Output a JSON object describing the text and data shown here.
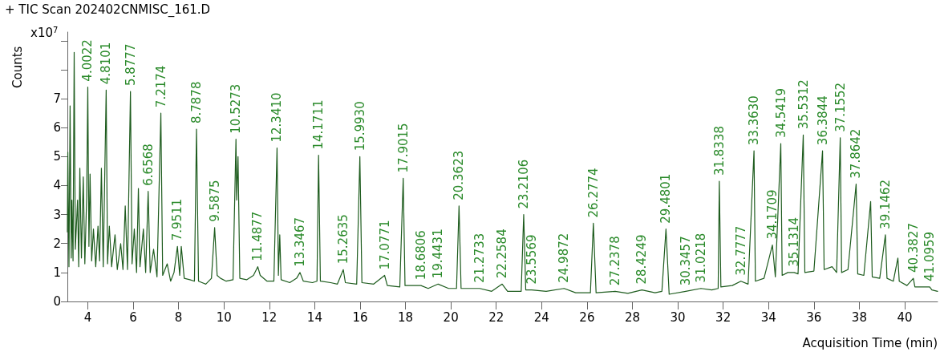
{
  "chart_data": {
    "type": "line",
    "title": "+ TIC Scan 202402CNMISC_161.D",
    "xlabel": "Acquisition Time (min)",
    "ylabel": "Counts",
    "xlim": [
      3.1,
      41.45
    ],
    "xticks": [
      4,
      6,
      8,
      10,
      12,
      14,
      16,
      18,
      20,
      22,
      24,
      26,
      28,
      30,
      32,
      34,
      36,
      38,
      40
    ],
    "ylim": [
      0,
      9.3
    ],
    "yticks": [
      0,
      1,
      2,
      3,
      4,
      5,
      6,
      7,
      {
        "value": 8,
        "label": null
      },
      {
        "value": 9,
        "label": null
      }
    ],
    "grid": false,
    "marker": "none",
    "line_style": "solid",
    "series": [
      {
        "color": "#1e5c1e",
        "x": [
          3.1,
          3.12,
          3.17,
          3.22,
          3.27,
          3.3,
          3.35,
          3.4,
          3.45,
          3.55,
          3.6,
          3.65,
          3.72,
          3.8,
          3.87,
          3.95,
          4.0,
          4.05,
          4.1,
          4.17,
          4.25,
          4.35,
          4.45,
          4.52,
          4.6,
          4.68,
          4.81,
          4.87,
          4.95,
          5.05,
          5.2,
          5.3,
          5.45,
          5.55,
          5.65,
          5.75,
          5.88,
          5.95,
          6.05,
          6.15,
          6.23,
          6.3,
          6.45,
          6.55,
          6.66,
          6.75,
          6.9,
          7.05,
          7.22,
          7.3,
          7.5,
          7.65,
          7.8,
          7.95,
          8.05,
          8.12,
          8.25,
          8.5,
          8.7,
          8.79,
          8.88,
          9.2,
          9.45,
          9.59,
          9.7,
          9.85,
          10.1,
          10.4,
          10.53,
          10.56,
          10.62,
          10.7,
          11.0,
          11.3,
          11.49,
          11.6,
          11.9,
          12.2,
          12.34,
          12.4,
          12.46,
          12.52,
          12.9,
          13.2,
          13.35,
          13.5,
          13.9,
          14.1,
          14.17,
          14.25,
          14.7,
          15.0,
          15.26,
          15.35,
          15.85,
          15.99,
          16.08,
          16.6,
          17.08,
          17.2,
          17.75,
          17.9,
          17.98,
          18.68,
          19.0,
          19.44,
          19.9,
          20.25,
          20.36,
          20.45,
          21.27,
          21.8,
          22.26,
          22.5,
          23.1,
          23.21,
          23.3,
          23.56,
          24.2,
          24.99,
          25.5,
          26.15,
          26.28,
          26.4,
          27.24,
          27.8,
          28.42,
          29.0,
          29.3,
          29.48,
          29.62,
          30.35,
          31.02,
          31.5,
          31.78,
          31.83,
          31.9,
          32.4,
          32.78,
          33.1,
          33.36,
          33.42,
          33.8,
          34.17,
          34.3,
          34.54,
          34.6,
          34.85,
          35.13,
          35.3,
          35.53,
          35.6,
          36.0,
          36.38,
          36.45,
          36.8,
          37.0,
          37.16,
          37.22,
          37.5,
          37.86,
          37.93,
          38.2,
          38.5,
          38.57,
          38.9,
          39.15,
          39.22,
          39.5,
          39.7,
          39.76,
          40.1,
          40.38,
          40.45,
          40.7,
          41.1,
          41.2,
          41.45
        ],
        "values": [
          2.4,
          5.15,
          1.2,
          6.75,
          1.5,
          3.5,
          1.4,
          8.6,
          1.8,
          3.5,
          1.2,
          4.6,
          1.5,
          4.3,
          1.3,
          3.6,
          7.4,
          1.9,
          4.4,
          1.4,
          2.5,
          1.2,
          2.6,
          1.4,
          4.6,
          1.2,
          7.3,
          1.3,
          2.6,
          1.2,
          2.3,
          1.1,
          2.0,
          1.1,
          3.3,
          1.1,
          7.25,
          1.3,
          2.5,
          1.0,
          3.9,
          1.2,
          2.5,
          1.0,
          3.8,
          1.0,
          1.8,
          0.85,
          6.5,
          0.9,
          1.3,
          0.7,
          1.0,
          1.9,
          0.9,
          1.9,
          0.8,
          0.75,
          0.7,
          5.95,
          0.7,
          0.6,
          0.8,
          2.55,
          0.9,
          0.8,
          0.7,
          0.75,
          5.6,
          3.5,
          5.0,
          0.8,
          0.75,
          0.9,
          1.2,
          0.9,
          0.7,
          0.7,
          5.3,
          0.9,
          2.3,
          0.75,
          0.65,
          0.8,
          1.0,
          0.7,
          0.65,
          0.7,
          5.05,
          0.7,
          0.65,
          0.6,
          1.1,
          0.65,
          0.6,
          5.0,
          0.65,
          0.6,
          0.9,
          0.55,
          0.5,
          4.25,
          0.55,
          0.55,
          0.45,
          0.6,
          0.45,
          0.45,
          3.3,
          0.45,
          0.45,
          0.35,
          0.6,
          0.35,
          0.35,
          3.0,
          0.4,
          0.4,
          0.35,
          0.45,
          0.3,
          0.3,
          2.7,
          0.3,
          0.35,
          0.28,
          0.4,
          0.3,
          0.35,
          2.5,
          0.25,
          0.35,
          0.45,
          0.4,
          0.45,
          4.15,
          0.5,
          0.55,
          0.7,
          0.6,
          5.2,
          0.7,
          0.8,
          1.95,
          0.85,
          5.45,
          0.9,
          1.0,
          1.0,
          0.95,
          5.75,
          1.0,
          1.05,
          5.2,
          1.1,
          1.2,
          1.0,
          5.65,
          1.0,
          1.1,
          4.05,
          0.95,
          0.9,
          3.45,
          0.85,
          0.8,
          2.3,
          0.8,
          0.7,
          1.5,
          0.7,
          0.55,
          0.8,
          0.5,
          0.5,
          0.5,
          0.4,
          0.35
        ]
      }
    ],
    "annotations": [
      "x10$^{7}$",
      {
        "text": "4.0022",
        "x": 4.0,
        "y": 7.4
      },
      {
        "text": "4.8101",
        "x": 4.81,
        "y": 7.3
      },
      {
        "text": "5.8777",
        "x": 5.88,
        "y": 7.25
      },
      {
        "text": "6.6568",
        "x": 6.66,
        "y": 3.8
      },
      {
        "text": "7.2174",
        "x": 7.22,
        "y": 6.5
      },
      {
        "text": "7.9511",
        "x": 7.95,
        "y": 1.9
      },
      {
        "text": "8.7878",
        "x": 8.79,
        "y": 5.95
      },
      {
        "text": "9.5875",
        "x": 9.59,
        "y": 2.55
      },
      {
        "text": "10.5273",
        "x": 10.53,
        "y": 5.6
      },
      {
        "text": "11.4877",
        "x": 11.49,
        "y": 1.2
      },
      {
        "text": "12.3410",
        "x": 12.34,
        "y": 5.3
      },
      {
        "text": "13.3467",
        "x": 13.35,
        "y": 1.0
      },
      {
        "text": "14.1711",
        "x": 14.17,
        "y": 5.05
      },
      {
        "text": "15.2635",
        "x": 15.26,
        "y": 1.1
      },
      {
        "text": "15.9930",
        "x": 15.99,
        "y": 5.0
      },
      {
        "text": "17.0771",
        "x": 17.08,
        "y": 0.9
      },
      {
        "text": "17.9015",
        "x": 17.9,
        "y": 4.25
      },
      {
        "text": "18.6806",
        "x": 18.68,
        "y": 0.55
      },
      {
        "text": "19.4431",
        "x": 19.44,
        "y": 0.6
      },
      {
        "text": "20.3623",
        "x": 20.36,
        "y": 3.3
      },
      {
        "text": "21.2733",
        "x": 21.27,
        "y": 0.45
      },
      {
        "text": "22.2584",
        "x": 22.26,
        "y": 0.6
      },
      {
        "text": "23.2106",
        "x": 23.21,
        "y": 3.0
      },
      {
        "text": "23.5569",
        "x": 23.56,
        "y": 0.4
      },
      {
        "text": "24.9872",
        "x": 24.99,
        "y": 0.45
      },
      {
        "text": "26.2774",
        "x": 26.28,
        "y": 2.7
      },
      {
        "text": "27.2378",
        "x": 27.24,
        "y": 0.35
      },
      {
        "text": "28.4249",
        "x": 28.42,
        "y": 0.4
      },
      {
        "text": "29.4801",
        "x": 29.48,
        "y": 2.5
      },
      {
        "text": "30.3457",
        "x": 30.35,
        "y": 0.35
      },
      {
        "text": "31.0218",
        "x": 31.02,
        "y": 0.45
      },
      {
        "text": "31.8338",
        "x": 31.83,
        "y": 4.15
      },
      {
        "text": "32.7777",
        "x": 32.78,
        "y": 0.7
      },
      {
        "text": "33.3630",
        "x": 33.36,
        "y": 5.2
      },
      {
        "text": "34.1709",
        "x": 34.17,
        "y": 1.95
      },
      {
        "text": "34.5419",
        "x": 34.54,
        "y": 5.45
      },
      {
        "text": "35.1314",
        "x": 35.13,
        "y": 1.0
      },
      {
        "text": "35.5312",
        "x": 35.53,
        "y": 5.75
      },
      {
        "text": "36.3844",
        "x": 36.38,
        "y": 5.2
      },
      {
        "text": "37.1552",
        "x": 37.16,
        "y": 5.65
      },
      {
        "text": "37.8642",
        "x": 37.86,
        "y": 4.05
      },
      {
        "text": "39.1462",
        "x": 39.15,
        "y": 2.3
      },
      {
        "text": "40.3827",
        "x": 40.38,
        "y": 0.8
      },
      {
        "text": "41.0959",
        "x": 41.1,
        "y": 0.5
      }
    ]
  }
}
